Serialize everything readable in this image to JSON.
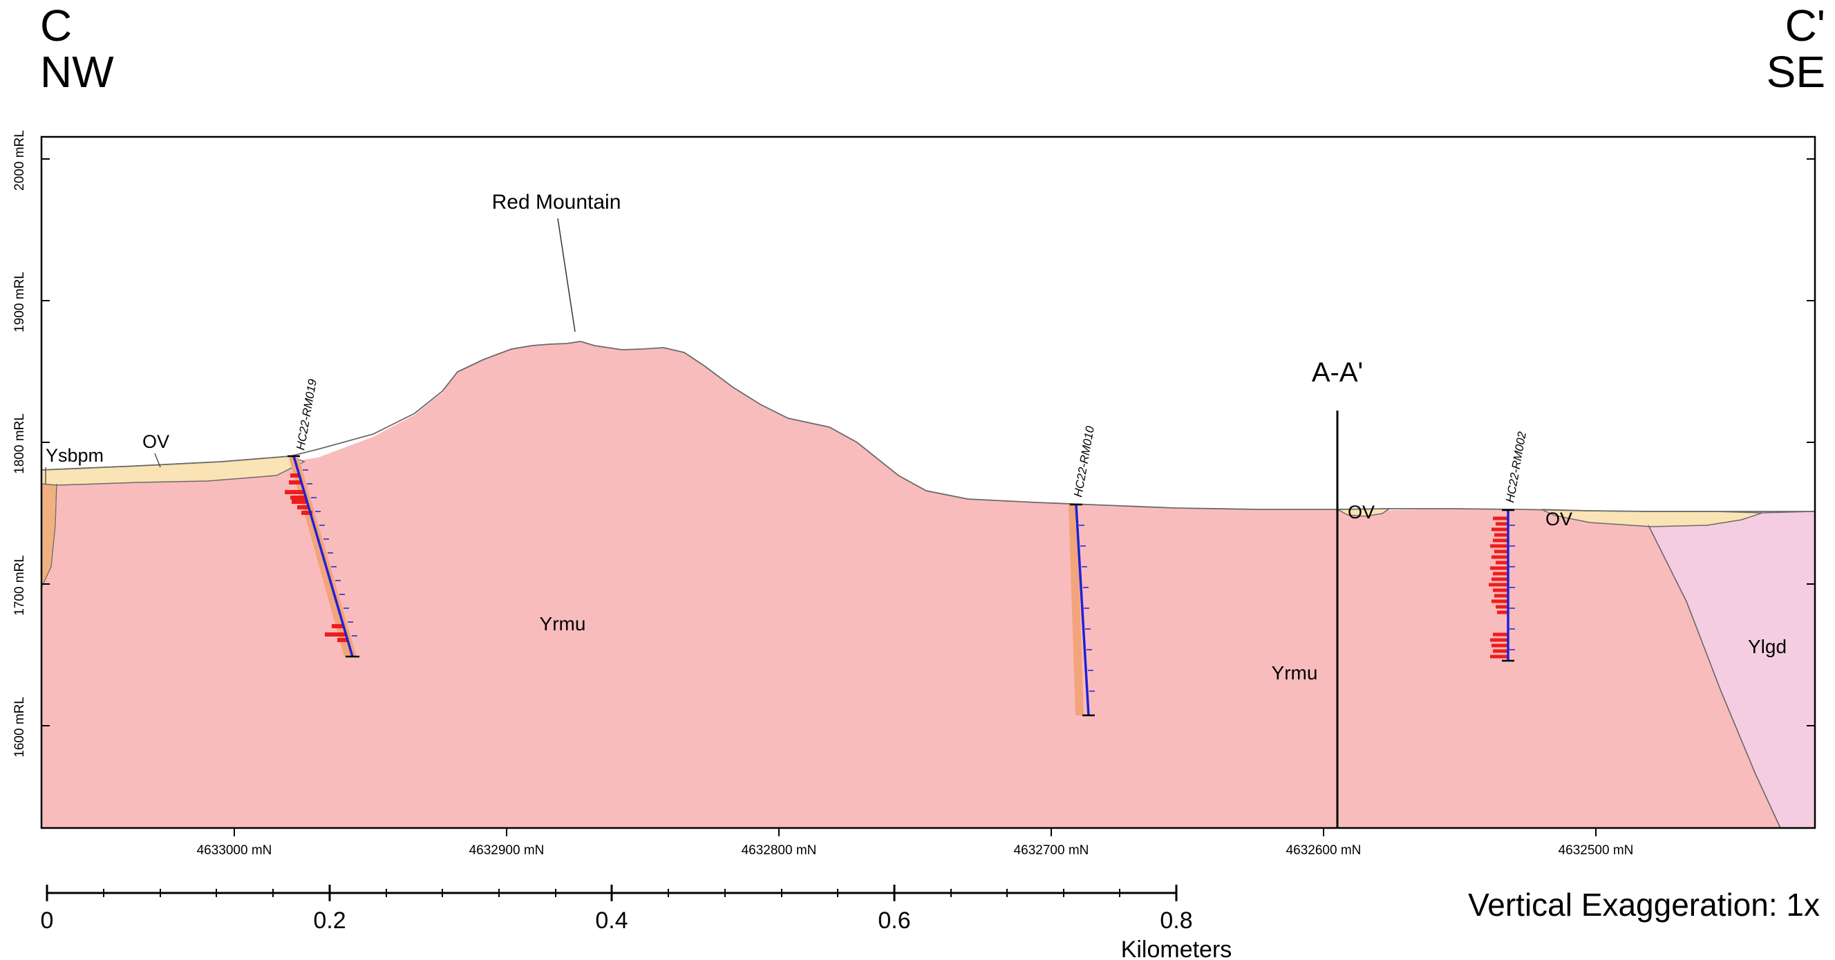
{
  "section": {
    "start_label": "C",
    "start_direction": "NW",
    "end_label": "C'",
    "end_direction": "SE"
  },
  "elevation_axis": {
    "unit_suffix": "mRL",
    "ticks": [
      "2000 mRL",
      "1900 mRL",
      "1800 mRL",
      "1700 mRL",
      "1600 mRL"
    ]
  },
  "northing_axis": {
    "ticks": [
      "4633000 mN",
      "4632900 mN",
      "4632800 mN",
      "4632700 mN",
      "4632600 mN",
      "4632500 mN"
    ]
  },
  "map_units": {
    "Ysbpm": "Ysbpm",
    "OV": "OV",
    "Yrmu": "Yrmu",
    "Ylgd": "Ylgd"
  },
  "unit_colors": {
    "Yrmu": "#f9bcbc",
    "OV": "#fae3b4",
    "Ysbpm": "#f0b080",
    "Ylgd": "#f5cde0",
    "alteration": "#f2a57a",
    "assay": "#ee1c1c",
    "drill_trace": "#2020d8"
  },
  "labels": {
    "peak": "Red Mountain",
    "cross_section_tie": "A-A'",
    "ov_1": "OV",
    "ov_2": "OV",
    "ov_3": "OV",
    "yrmu_1": "Yrmu",
    "yrmu_2": "Yrmu"
  },
  "drillholes": [
    "HC22-RM019",
    "HC22-RM010",
    "HC22-RM002"
  ],
  "scale_bar": {
    "ticks": [
      "0",
      "0.2",
      "0.4",
      "0.6",
      "0.8"
    ],
    "unit": "Kilometers"
  },
  "vertical_exaggeration": "Vertical Exaggeration: 1x"
}
